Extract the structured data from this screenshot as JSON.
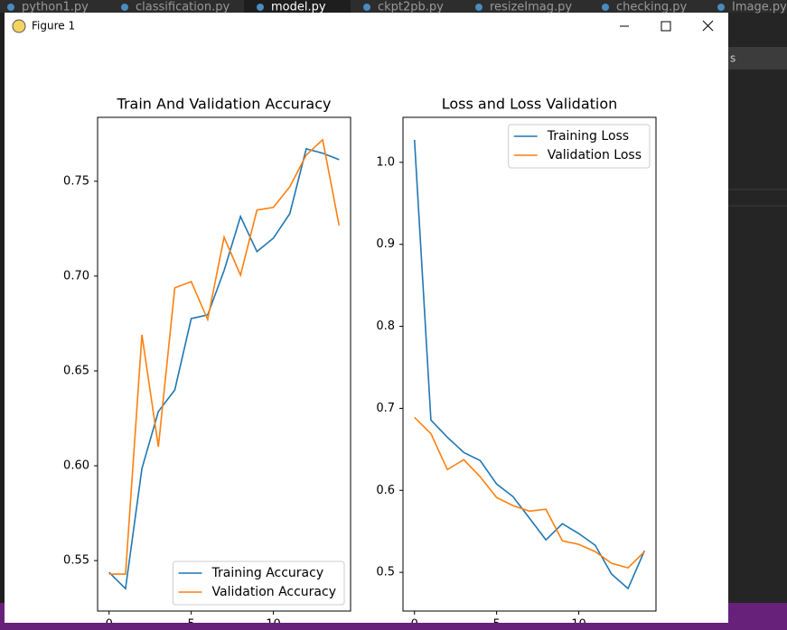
{
  "editor_tabs": [
    "python1.py",
    "classification.py",
    "model.py",
    "ckpt2pb.py",
    "resizeImag.py",
    "checking.py",
    "Image.py"
  ],
  "window": {
    "title": "Figure 1"
  },
  "side_text": "s",
  "chart_data": [
    {
      "type": "line",
      "title": "Train And Validation Accuracy",
      "x": [
        0,
        1,
        2,
        3,
        4,
        5,
        6,
        7,
        8,
        9,
        10,
        11,
        12,
        13,
        14
      ],
      "series": [
        {
          "name": "Training Accuracy",
          "color": "#1f77b4",
          "values": [
            0.5438,
            0.5352,
            0.5986,
            0.6286,
            0.64,
            0.6776,
            0.6795,
            0.7029,
            0.7314,
            0.7129,
            0.72,
            0.7329,
            0.7671,
            0.7648,
            0.7614
          ]
        },
        {
          "name": "Validation Accuracy",
          "color": "#ff7f0e",
          "values": [
            0.5429,
            0.5429,
            0.669,
            0.61,
            0.6938,
            0.6971,
            0.6771,
            0.7205,
            0.7005,
            0.7348,
            0.7362,
            0.7471,
            0.7638,
            0.7719,
            0.7267
          ]
        }
      ],
      "xlim": [
        -0.7,
        14.7
      ],
      "xticks": [
        0,
        5,
        10
      ],
      "ylim": [
        0.5234,
        0.7837
      ],
      "yticks": [
        {
          "value": 0.55,
          "label": "0.55"
        },
        {
          "value": 0.6,
          "label": "0.60"
        },
        {
          "value": 0.65,
          "label": "0.65"
        },
        {
          "value": 0.7,
          "label": "0.70"
        },
        {
          "value": 0.75,
          "label": "0.75"
        }
      ],
      "legend": "lower right"
    },
    {
      "type": "line",
      "title": "Loss and Loss Validation",
      "x": [
        0,
        1,
        2,
        3,
        4,
        5,
        6,
        7,
        8,
        9,
        10,
        11,
        12,
        13,
        14
      ],
      "series": [
        {
          "name": "Training Loss",
          "color": "#1f77b4",
          "values": [
            1.0275,
            0.6857,
            0.6648,
            0.6462,
            0.6363,
            0.6077,
            0.5923,
            0.566,
            0.5396,
            0.5593,
            0.5473,
            0.533,
            0.4978,
            0.4802,
            0.5264
          ]
        },
        {
          "name": "Validation Loss",
          "color": "#ff7f0e",
          "values": [
            0.689,
            0.6692,
            0.6253,
            0.6374,
            0.6165,
            0.5912,
            0.5813,
            0.5747,
            0.5769,
            0.5385,
            0.5341,
            0.5253,
            0.511,
            0.5055,
            0.5253
          ]
        }
      ],
      "xlim": [
        -0.7,
        14.7
      ],
      "xticks": [
        0,
        5,
        10
      ],
      "ylim": [
        0.4528,
        1.0549
      ],
      "yticks": [
        0.5,
        0.6,
        0.7,
        0.8,
        0.9,
        {
          "value": 1.0,
          "label": "1.0"
        }
      ],
      "legend": "upper right"
    }
  ]
}
